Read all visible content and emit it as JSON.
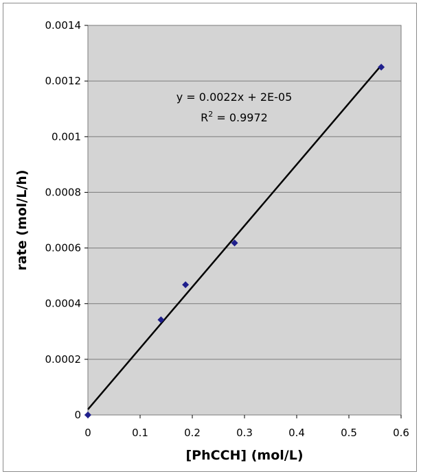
{
  "chart_data": {
    "type": "scatter",
    "title": "",
    "xlabel": "[PhCCH] (mol/L)",
    "ylabel": "rate (mol/L/h)",
    "xlim": [
      0,
      0.6
    ],
    "ylim": [
      0,
      0.0014
    ],
    "x_ticks": [
      "0",
      "0.1",
      "0.2",
      "0.3",
      "0.4",
      "0.5",
      "0.6"
    ],
    "y_ticks": [
      "0",
      "0.0002",
      "0.0004",
      "0.0006",
      "0.0008",
      "0.001",
      "0.0012",
      "0.0014"
    ],
    "x_tick_values": [
      0,
      0.1,
      0.2,
      0.3,
      0.4,
      0.5,
      0.6
    ],
    "y_tick_values": [
      0,
      0.0002,
      0.0004,
      0.0006,
      0.0008,
      0.001,
      0.0012,
      0.0014
    ],
    "grid": "horizontal",
    "legend": "none",
    "series": [
      {
        "x": [
          0,
          0.14,
          0.187,
          0.281,
          0.562
        ],
        "y": [
          0,
          0.000342,
          0.000468,
          0.000618,
          0.00125
        ],
        "marker": "diamond",
        "color": "#1f1f8c"
      }
    ],
    "trendline": {
      "slope": 0.0022,
      "intercept": 2e-05,
      "x_range": [
        0,
        0.562
      ],
      "color": "#000000",
      "equation": "y = 0.0022x + 2E-05",
      "r2_prefix": "R",
      "r2_sup": "2",
      "r2_value": " = 0.9972"
    },
    "colors": {
      "plot_background": "#d4d4d4",
      "gridline": "#7a7a7a"
    }
  }
}
